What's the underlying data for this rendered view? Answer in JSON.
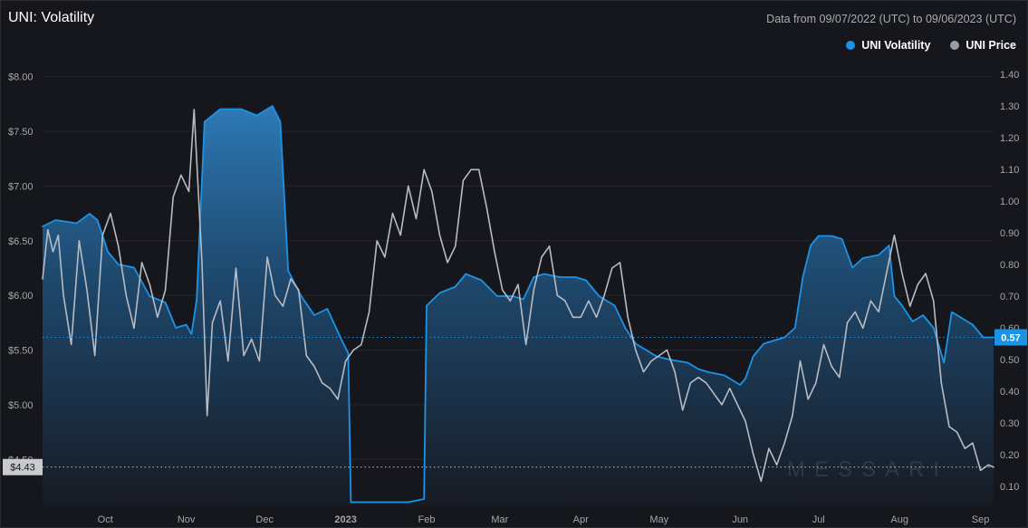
{
  "header": {
    "title": "UNI: Volatility",
    "date_range": "Data from 09/07/2022 (UTC) to 09/06/2023 (UTC)"
  },
  "legend": [
    {
      "label": "UNI Volatility",
      "color": "#1d93e6"
    },
    {
      "label": "UNI Price",
      "color": "#9a9ca3"
    }
  ],
  "watermark": "MESSARI",
  "chart_data": {
    "type": "line",
    "x_tick_labels": [
      "Oct",
      "Nov",
      "Dec",
      "2023",
      "Feb",
      "Mar",
      "Apr",
      "May",
      "Jun",
      "Jul",
      "Aug",
      "Sep"
    ],
    "x_range": [
      "2022-09-07",
      "2023-09-06"
    ],
    "y_left": {
      "ticks": [
        "$8.00",
        "$7.50",
        "$7.00",
        "$6.50",
        "$6.00",
        "$5.50",
        "$5.00",
        "$4.50"
      ],
      "range": [
        4.08,
        8.08
      ]
    },
    "y_right": {
      "ticks": [
        "1.40",
        "1.30",
        "1.20",
        "1.10",
        "1.00",
        "0.90",
        "0.80",
        "0.70",
        "0.60",
        "0.50",
        "0.40",
        "0.30",
        "0.20",
        "0.10"
      ],
      "range": [
        0.04,
        1.42
      ]
    },
    "current_price_label": "$4.43",
    "current_price": 4.43,
    "current_volatility_label": "0.57",
    "current_volatility": 0.57,
    "series": [
      {
        "name": "UNI Volatility",
        "axis": "right",
        "color": "#1d93e6",
        "fill": "area",
        "points": [
          [
            "2022-09-07",
            0.92
          ],
          [
            "2022-09-12",
            0.94
          ],
          [
            "2022-09-20",
            0.93
          ],
          [
            "2022-09-25",
            0.96
          ],
          [
            "2022-09-28",
            0.94
          ],
          [
            "2022-10-02",
            0.84
          ],
          [
            "2022-10-06",
            0.8
          ],
          [
            "2022-10-12",
            0.79
          ],
          [
            "2022-10-18",
            0.7
          ],
          [
            "2022-10-24",
            0.68
          ],
          [
            "2022-10-28",
            0.6
          ],
          [
            "2022-11-01",
            0.61
          ],
          [
            "2022-11-03",
            0.58
          ],
          [
            "2022-11-05",
            0.69
          ],
          [
            "2022-11-08",
            1.25
          ],
          [
            "2022-11-14",
            1.29
          ],
          [
            "2022-11-22",
            1.29
          ],
          [
            "2022-11-28",
            1.27
          ],
          [
            "2022-12-04",
            1.3
          ],
          [
            "2022-12-07",
            1.25
          ],
          [
            "2022-12-10",
            0.78
          ],
          [
            "2022-12-15",
            0.7
          ],
          [
            "2022-12-20",
            0.64
          ],
          [
            "2022-12-25",
            0.66
          ],
          [
            "2022-12-30",
            0.57
          ],
          [
            "2023-01-02",
            0.52
          ],
          [
            "2023-01-03",
            0.05
          ],
          [
            "2023-01-10",
            0.05
          ],
          [
            "2023-01-25",
            0.05
          ],
          [
            "2023-01-31",
            0.06
          ],
          [
            "2023-02-01",
            0.67
          ],
          [
            "2023-02-06",
            0.71
          ],
          [
            "2023-02-12",
            0.73
          ],
          [
            "2023-02-16",
            0.77
          ],
          [
            "2023-02-22",
            0.75
          ],
          [
            "2023-02-28",
            0.7
          ],
          [
            "2023-03-06",
            0.7
          ],
          [
            "2023-03-10",
            0.69
          ],
          [
            "2023-03-14",
            0.76
          ],
          [
            "2023-03-18",
            0.77
          ],
          [
            "2023-03-24",
            0.76
          ],
          [
            "2023-03-30",
            0.76
          ],
          [
            "2023-04-03",
            0.75
          ],
          [
            "2023-04-08",
            0.7
          ],
          [
            "2023-04-14",
            0.67
          ],
          [
            "2023-04-18",
            0.6
          ],
          [
            "2023-04-22",
            0.55
          ],
          [
            "2023-04-26",
            0.53
          ],
          [
            "2023-04-30",
            0.51
          ],
          [
            "2023-05-05",
            0.5
          ],
          [
            "2023-05-12",
            0.49
          ],
          [
            "2023-05-16",
            0.47
          ],
          [
            "2023-05-20",
            0.46
          ],
          [
            "2023-05-26",
            0.45
          ],
          [
            "2023-06-01",
            0.42
          ],
          [
            "2023-06-03",
            0.44
          ],
          [
            "2023-06-06",
            0.51
          ],
          [
            "2023-06-10",
            0.55
          ],
          [
            "2023-06-18",
            0.57
          ],
          [
            "2023-06-22",
            0.6
          ],
          [
            "2023-06-25",
            0.76
          ],
          [
            "2023-06-28",
            0.86
          ],
          [
            "2023-07-01",
            0.89
          ],
          [
            "2023-07-06",
            0.89
          ],
          [
            "2023-07-10",
            0.88
          ],
          [
            "2023-07-14",
            0.79
          ],
          [
            "2023-07-18",
            0.82
          ],
          [
            "2023-07-24",
            0.83
          ],
          [
            "2023-07-28",
            0.86
          ],
          [
            "2023-07-30",
            0.7
          ],
          [
            "2023-08-02",
            0.67
          ],
          [
            "2023-08-06",
            0.62
          ],
          [
            "2023-08-10",
            0.64
          ],
          [
            "2023-08-14",
            0.6
          ],
          [
            "2023-08-18",
            0.49
          ],
          [
            "2023-08-21",
            0.65
          ],
          [
            "2023-08-25",
            0.63
          ],
          [
            "2023-08-29",
            0.61
          ],
          [
            "2023-09-02",
            0.57
          ],
          [
            "2023-09-06",
            0.57
          ]
        ]
      },
      {
        "name": "UNI Price",
        "axis": "left",
        "color": "#b9bbc2",
        "points": [
          [
            "2022-09-07",
            6.15
          ],
          [
            "2022-09-09",
            6.6
          ],
          [
            "2022-09-11",
            6.4
          ],
          [
            "2022-09-13",
            6.55
          ],
          [
            "2022-09-15",
            6.0
          ],
          [
            "2022-09-18",
            5.55
          ],
          [
            "2022-09-21",
            6.5
          ],
          [
            "2022-09-24",
            6.05
          ],
          [
            "2022-09-27",
            5.45
          ],
          [
            "2022-09-30",
            6.55
          ],
          [
            "2022-10-03",
            6.75
          ],
          [
            "2022-10-06",
            6.45
          ],
          [
            "2022-10-09",
            6.0
          ],
          [
            "2022-10-12",
            5.7
          ],
          [
            "2022-10-15",
            6.3
          ],
          [
            "2022-10-18",
            6.1
          ],
          [
            "2022-10-21",
            5.8
          ],
          [
            "2022-10-24",
            6.05
          ],
          [
            "2022-10-27",
            6.9
          ],
          [
            "2022-10-30",
            7.1
          ],
          [
            "2022-11-02",
            6.95
          ],
          [
            "2022-11-04",
            7.7
          ],
          [
            "2022-11-07",
            6.3
          ],
          [
            "2022-11-09",
            4.9
          ],
          [
            "2022-11-11",
            5.75
          ],
          [
            "2022-11-14",
            5.95
          ],
          [
            "2022-11-17",
            5.4
          ],
          [
            "2022-11-20",
            6.25
          ],
          [
            "2022-11-23",
            5.45
          ],
          [
            "2022-11-26",
            5.6
          ],
          [
            "2022-11-29",
            5.4
          ],
          [
            "2022-12-02",
            6.35
          ],
          [
            "2022-12-05",
            6.0
          ],
          [
            "2022-12-08",
            5.9
          ],
          [
            "2022-12-11",
            6.15
          ],
          [
            "2022-12-14",
            6.05
          ],
          [
            "2022-12-17",
            5.45
          ],
          [
            "2022-12-20",
            5.35
          ],
          [
            "2022-12-23",
            5.2
          ],
          [
            "2022-12-26",
            5.15
          ],
          [
            "2022-12-29",
            5.05
          ],
          [
            "2023-01-01",
            5.4
          ],
          [
            "2023-01-04",
            5.5
          ],
          [
            "2023-01-07",
            5.55
          ],
          [
            "2023-01-10",
            5.85
          ],
          [
            "2023-01-13",
            6.5
          ],
          [
            "2023-01-16",
            6.35
          ],
          [
            "2023-01-19",
            6.75
          ],
          [
            "2023-01-22",
            6.55
          ],
          [
            "2023-01-25",
            7.0
          ],
          [
            "2023-01-28",
            6.7
          ],
          [
            "2023-01-31",
            7.15
          ],
          [
            "2023-02-03",
            6.95
          ],
          [
            "2023-02-06",
            6.55
          ],
          [
            "2023-02-09",
            6.3
          ],
          [
            "2023-02-12",
            6.45
          ],
          [
            "2023-02-15",
            7.05
          ],
          [
            "2023-02-18",
            7.15
          ],
          [
            "2023-02-21",
            7.15
          ],
          [
            "2023-02-24",
            6.8
          ],
          [
            "2023-02-27",
            6.4
          ],
          [
            "2023-03-02",
            6.05
          ],
          [
            "2023-03-05",
            5.95
          ],
          [
            "2023-03-08",
            6.1
          ],
          [
            "2023-03-11",
            5.55
          ],
          [
            "2023-03-14",
            6.05
          ],
          [
            "2023-03-17",
            6.35
          ],
          [
            "2023-03-20",
            6.45
          ],
          [
            "2023-03-23",
            6.0
          ],
          [
            "2023-03-26",
            5.95
          ],
          [
            "2023-03-29",
            5.8
          ],
          [
            "2023-04-01",
            5.8
          ],
          [
            "2023-04-04",
            5.95
          ],
          [
            "2023-04-07",
            5.8
          ],
          [
            "2023-04-10",
            6.0
          ],
          [
            "2023-04-13",
            6.25
          ],
          [
            "2023-04-16",
            6.3
          ],
          [
            "2023-04-19",
            5.8
          ],
          [
            "2023-04-22",
            5.5
          ],
          [
            "2023-04-25",
            5.3
          ],
          [
            "2023-04-28",
            5.4
          ],
          [
            "2023-05-01",
            5.45
          ],
          [
            "2023-05-04",
            5.5
          ],
          [
            "2023-05-07",
            5.3
          ],
          [
            "2023-05-10",
            4.95
          ],
          [
            "2023-05-13",
            5.2
          ],
          [
            "2023-05-16",
            5.25
          ],
          [
            "2023-05-19",
            5.2
          ],
          [
            "2023-05-22",
            5.1
          ],
          [
            "2023-05-25",
            5.0
          ],
          [
            "2023-05-28",
            5.15
          ],
          [
            "2023-05-31",
            5.0
          ],
          [
            "2023-06-03",
            4.85
          ],
          [
            "2023-06-06",
            4.55
          ],
          [
            "2023-06-09",
            4.3
          ],
          [
            "2023-06-12",
            4.6
          ],
          [
            "2023-06-15",
            4.45
          ],
          [
            "2023-06-18",
            4.65
          ],
          [
            "2023-06-21",
            4.9
          ],
          [
            "2023-06-24",
            5.4
          ],
          [
            "2023-06-27",
            5.05
          ],
          [
            "2023-06-30",
            5.2
          ],
          [
            "2023-07-03",
            5.55
          ],
          [
            "2023-07-06",
            5.35
          ],
          [
            "2023-07-09",
            5.25
          ],
          [
            "2023-07-12",
            5.75
          ],
          [
            "2023-07-15",
            5.85
          ],
          [
            "2023-07-18",
            5.7
          ],
          [
            "2023-07-21",
            5.95
          ],
          [
            "2023-07-24",
            5.85
          ],
          [
            "2023-07-27",
            6.2
          ],
          [
            "2023-07-30",
            6.55
          ],
          [
            "2023-08-02",
            6.2
          ],
          [
            "2023-08-05",
            5.9
          ],
          [
            "2023-08-08",
            6.1
          ],
          [
            "2023-08-11",
            6.2
          ],
          [
            "2023-08-14",
            5.95
          ],
          [
            "2023-08-17",
            5.2
          ],
          [
            "2023-08-20",
            4.8
          ],
          [
            "2023-08-23",
            4.75
          ],
          [
            "2023-08-26",
            4.6
          ],
          [
            "2023-08-29",
            4.65
          ],
          [
            "2023-09-01",
            4.4
          ],
          [
            "2023-09-04",
            4.45
          ],
          [
            "2023-09-06",
            4.43
          ]
        ]
      }
    ]
  }
}
